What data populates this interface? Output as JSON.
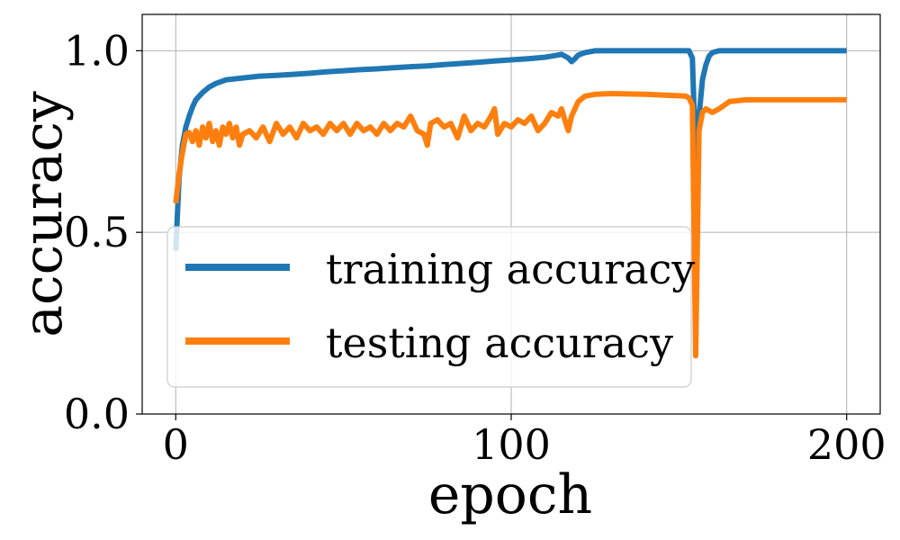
{
  "chart_data": {
    "type": "line",
    "xlabel": "epoch",
    "ylabel": "accuracy",
    "xlim": [
      -10,
      210
    ],
    "ylim": [
      0,
      1.1
    ],
    "xticks": [
      0,
      100,
      200
    ],
    "xtick_labels": [
      "0",
      "100",
      "200"
    ],
    "yticks": [
      0.0,
      0.5,
      1.0
    ],
    "ytick_labels": [
      "0.0",
      "0.5",
      "1.0"
    ],
    "grid": true,
    "legend_position": "lower-left",
    "series": [
      {
        "name": "training accuracy",
        "color": "#1f77b4",
        "x": [
          0,
          1,
          2,
          3,
          4,
          5,
          6,
          8,
          10,
          12,
          15,
          20,
          25,
          30,
          35,
          40,
          45,
          50,
          55,
          60,
          65,
          70,
          75,
          80,
          85,
          90,
          95,
          100,
          105,
          110,
          112,
          115,
          117,
          118,
          119,
          120,
          122,
          125,
          130,
          140,
          150,
          152,
          153,
          154,
          155,
          156,
          157,
          158,
          159,
          160,
          162,
          165,
          170,
          180,
          190,
          200
        ],
        "y": [
          0.45,
          0.65,
          0.74,
          0.79,
          0.82,
          0.845,
          0.865,
          0.885,
          0.9,
          0.91,
          0.92,
          0.925,
          0.93,
          0.932,
          0.935,
          0.938,
          0.942,
          0.945,
          0.948,
          0.95,
          0.953,
          0.956,
          0.958,
          0.962,
          0.965,
          0.968,
          0.972,
          0.975,
          0.978,
          0.982,
          0.985,
          0.99,
          0.98,
          0.97,
          0.978,
          0.988,
          0.995,
          1.0,
          1.0,
          1.0,
          1.0,
          1.0,
          1.0,
          0.98,
          0.7,
          0.82,
          0.92,
          0.96,
          0.985,
          0.995,
          1.0,
          1.0,
          1.0,
          1.0,
          1.0,
          1.0
        ]
      },
      {
        "name": "testing accuracy",
        "color": "#ff7f0e",
        "x": [
          0,
          1,
          2,
          3,
          4,
          5,
          6,
          7,
          8,
          9,
          10,
          11,
          12,
          13,
          14,
          15,
          16,
          17,
          18,
          19,
          20,
          22,
          24,
          26,
          28,
          30,
          32,
          34,
          36,
          38,
          40,
          42,
          44,
          46,
          48,
          50,
          52,
          54,
          56,
          58,
          60,
          62,
          64,
          66,
          68,
          70,
          72,
          74,
          75,
          76,
          78,
          80,
          82,
          84,
          86,
          88,
          90,
          92,
          94,
          95,
          96,
          98,
          100,
          102,
          104,
          106,
          108,
          110,
          112,
          114,
          115,
          116,
          117,
          118,
          119,
          120,
          122,
          125,
          130,
          135,
          140,
          145,
          150,
          152,
          153,
          154,
          155,
          156,
          157,
          158,
          160,
          162,
          165,
          170,
          180,
          190,
          200
        ],
        "y": [
          0.58,
          0.66,
          0.72,
          0.77,
          0.775,
          0.75,
          0.78,
          0.74,
          0.79,
          0.76,
          0.8,
          0.75,
          0.78,
          0.74,
          0.79,
          0.77,
          0.8,
          0.76,
          0.79,
          0.74,
          0.77,
          0.78,
          0.76,
          0.79,
          0.75,
          0.8,
          0.77,
          0.79,
          0.76,
          0.8,
          0.78,
          0.79,
          0.77,
          0.8,
          0.78,
          0.8,
          0.77,
          0.8,
          0.78,
          0.79,
          0.77,
          0.8,
          0.78,
          0.8,
          0.79,
          0.82,
          0.78,
          0.77,
          0.74,
          0.8,
          0.81,
          0.79,
          0.8,
          0.76,
          0.82,
          0.78,
          0.8,
          0.79,
          0.82,
          0.84,
          0.77,
          0.8,
          0.79,
          0.81,
          0.8,
          0.82,
          0.78,
          0.8,
          0.83,
          0.82,
          0.84,
          0.81,
          0.78,
          0.82,
          0.84,
          0.86,
          0.875,
          0.88,
          0.882,
          0.881,
          0.88,
          0.878,
          0.876,
          0.875,
          0.87,
          0.85,
          0.16,
          0.78,
          0.83,
          0.84,
          0.83,
          0.84,
          0.86,
          0.865,
          0.865,
          0.865,
          0.865
        ]
      }
    ]
  }
}
